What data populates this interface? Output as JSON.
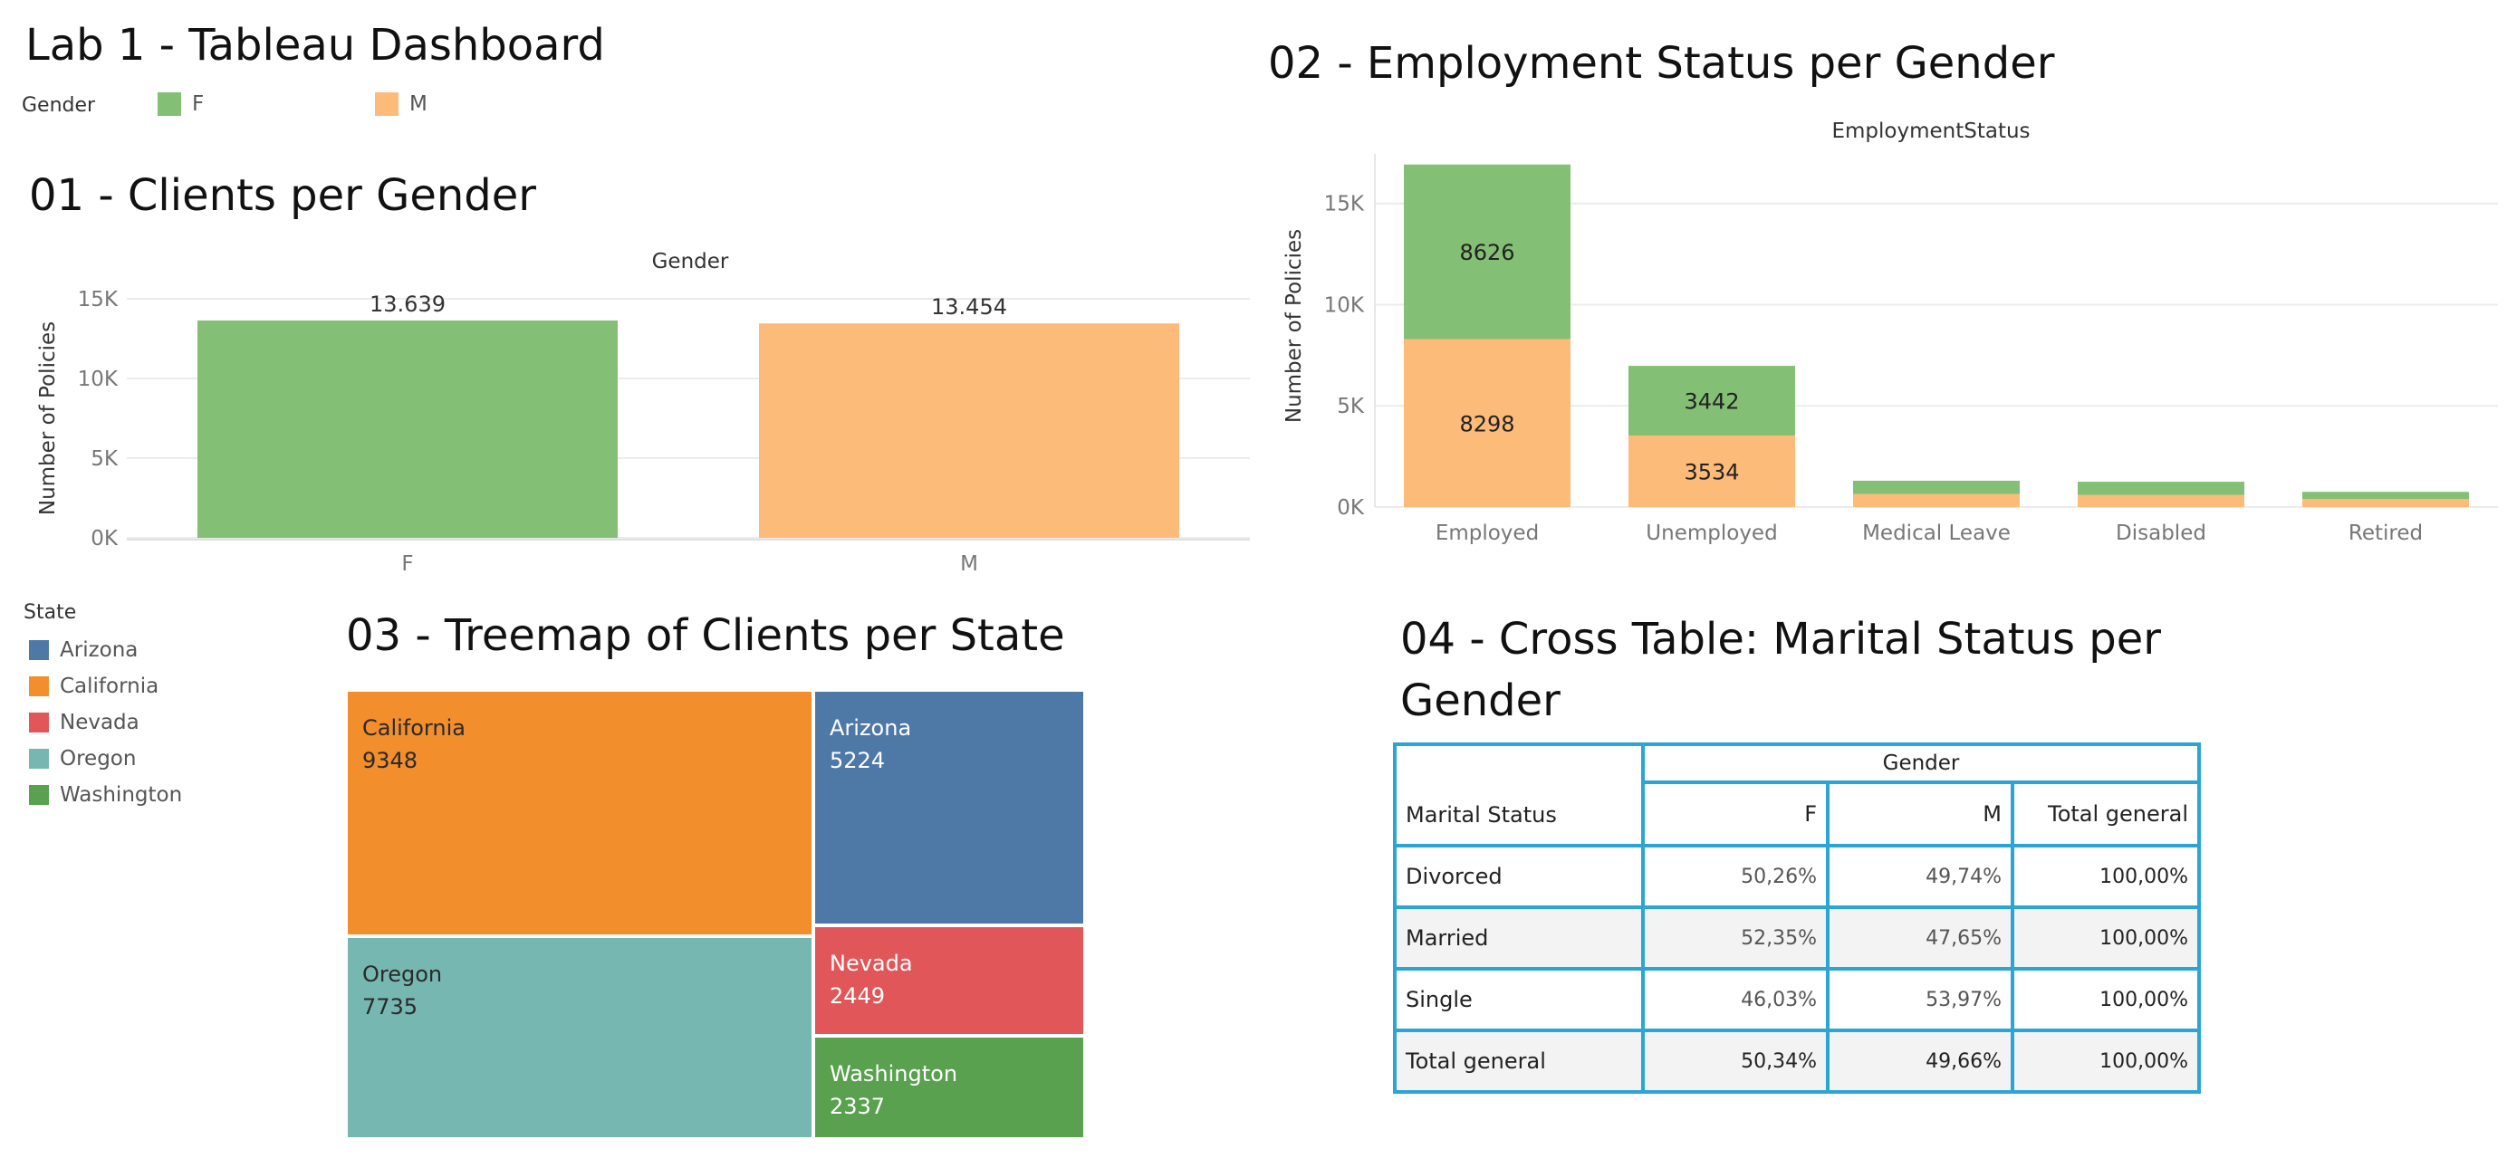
{
  "dashboard": {
    "title": "Lab 1 - Tableau Dashboard",
    "gender_legend": {
      "title": "Gender",
      "items": [
        {
          "label": "F",
          "color": "#83bf74"
        },
        {
          "label": "M",
          "color": "#fdbb79"
        }
      ]
    }
  },
  "chart1": {
    "heading": "01 - Clients per Gender"
  },
  "chart2": {
    "heading": "02 - Employment Status per Gender"
  },
  "chart3": {
    "heading": "03 - Treemap of Clients per State",
    "legend_title": "State",
    "legend": [
      {
        "label": "Arizona",
        "color": "#4e79a7"
      },
      {
        "label": "California",
        "color": "#f28e2b"
      },
      {
        "label": "Nevada",
        "color": "#e15759"
      },
      {
        "label": "Oregon",
        "color": "#76b7b2"
      },
      {
        "label": "Washington",
        "color": "#59a14f"
      }
    ]
  },
  "chart4": {
    "heading_line1": "04 - Cross Table: Marital Status per",
    "heading_line2": "Gender",
    "column_group": "Gender",
    "row_header": "Marital Status",
    "columns": [
      "F",
      "M",
      "Total general"
    ],
    "rows": [
      {
        "label": "Divorced",
        "values": [
          "50,26%",
          "49,74%",
          "100,00%"
        ]
      },
      {
        "label": "Married",
        "values": [
          "52,35%",
          "47,65%",
          "100,00%"
        ]
      },
      {
        "label": "Single",
        "values": [
          "46,03%",
          "53,97%",
          "100,00%"
        ]
      },
      {
        "label": "Total general",
        "values": [
          "50,34%",
          "49,66%",
          "100,00%"
        ]
      }
    ]
  },
  "chart_data": [
    {
      "type": "bar",
      "title": "01 - Clients per Gender",
      "column_header": "Gender",
      "ylabel": "Number of Policies",
      "categories": [
        "F",
        "M"
      ],
      "values": [
        13639,
        13454
      ],
      "data_labels": [
        "13.639",
        "13.454"
      ],
      "colors": [
        "#83bf74",
        "#fdbb79"
      ],
      "ylim": [
        0,
        15000
      ],
      "yticks": [
        0,
        5000,
        10000,
        15000
      ],
      "ytick_labels": [
        "0K",
        "5K",
        "10K",
        "15K"
      ],
      "grid": true
    },
    {
      "type": "bar",
      "stacked": true,
      "title": "02 - Employment Status per Gender",
      "column_header": "EmploymentStatus",
      "ylabel": "Number of Policies",
      "categories": [
        "Employed",
        "Unemployed",
        "Medical Leave",
        "Disabled",
        "Retired"
      ],
      "series": [
        {
          "name": "M",
          "color": "#fdbb79",
          "values": [
            8298,
            3534,
            650,
            600,
            400
          ],
          "labels": [
            "8298",
            "3534",
            "",
            "",
            ""
          ]
        },
        {
          "name": "F",
          "color": "#83bf74",
          "values": [
            8626,
            3442,
            650,
            650,
            350
          ],
          "labels": [
            "8626",
            "3442",
            "",
            "",
            ""
          ]
        }
      ],
      "ylim": [
        0,
        17000
      ],
      "yticks": [
        0,
        5000,
        10000,
        15000
      ],
      "ytick_labels": [
        "0K",
        "5K",
        "10K",
        "15K"
      ],
      "grid": true
    },
    {
      "type": "treemap",
      "title": "03 - Treemap of Clients per State",
      "items": [
        {
          "label": "California",
          "value": 9348,
          "color": "#f28e2b"
        },
        {
          "label": "Oregon",
          "value": 7735,
          "color": "#76b7b2"
        },
        {
          "label": "Arizona",
          "value": 5224,
          "color": "#4e79a7"
        },
        {
          "label": "Nevada",
          "value": 2449,
          "color": "#e15759"
        },
        {
          "label": "Washington",
          "value": 2337,
          "color": "#59a14f"
        }
      ]
    }
  ]
}
